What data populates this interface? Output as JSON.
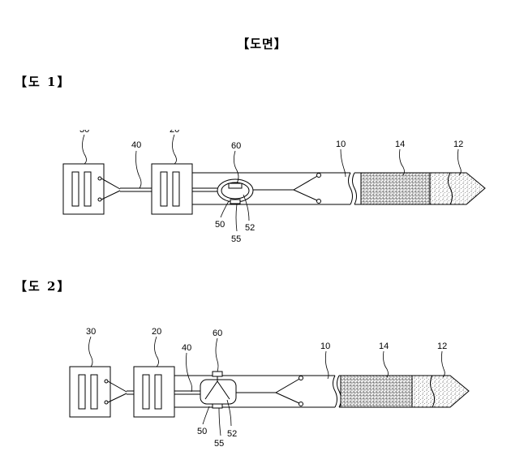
{
  "document": {
    "title": "【도면】",
    "figures": [
      {
        "label": "【도 1】",
        "refs": {
          "r30": "30",
          "r20": "20",
          "r40": "40",
          "r60": "60",
          "r10": "10",
          "r14": "14",
          "r12": "12",
          "r50": "50",
          "r55": "55",
          "r52": "52"
        }
      },
      {
        "label": "【도 2】",
        "refs": {
          "r30": "30",
          "r20": "20",
          "r40": "40",
          "r60": "60",
          "r10": "10",
          "r14": "14",
          "r12": "12",
          "r50": "50",
          "r55": "55",
          "r52": "52"
        }
      }
    ]
  }
}
